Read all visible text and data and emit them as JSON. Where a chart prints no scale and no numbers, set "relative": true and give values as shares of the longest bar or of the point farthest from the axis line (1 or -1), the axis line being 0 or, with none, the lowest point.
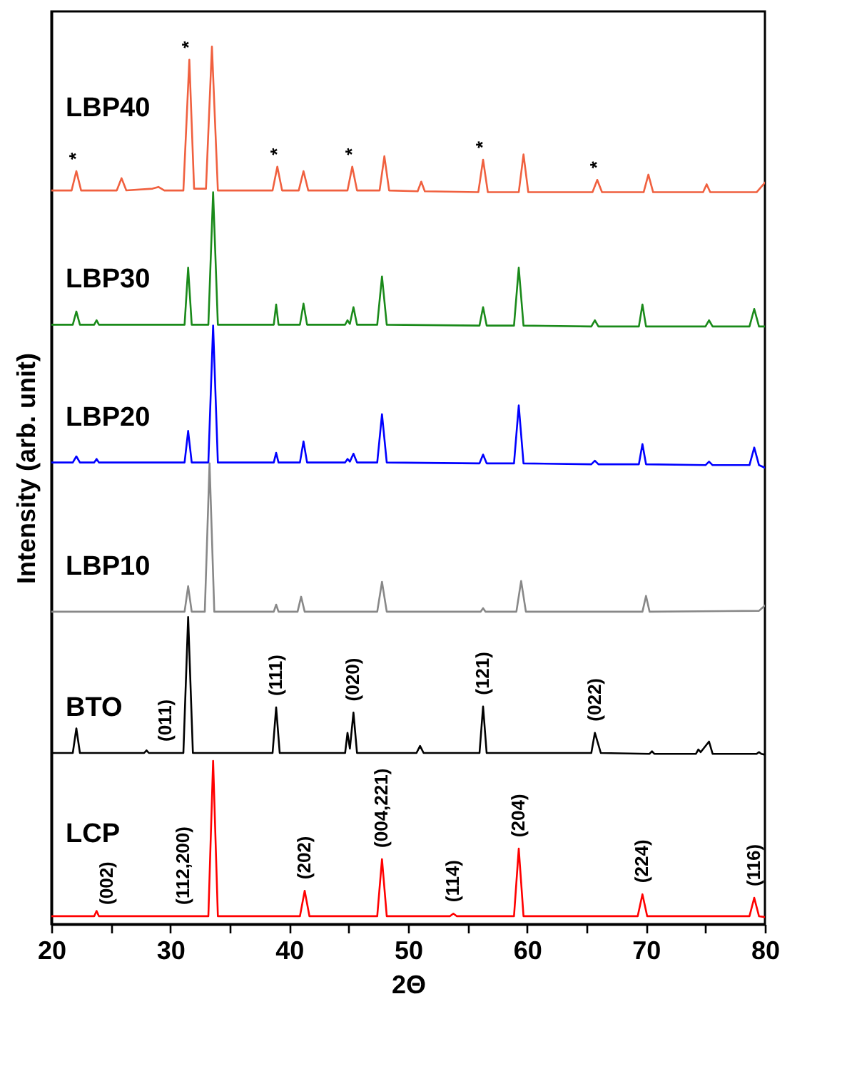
{
  "chart_data": {
    "type": "line",
    "relative": true,
    "tick_labels": "x",
    "xlabel": "2Θ",
    "ylabel": "Intensity (arb. unit)",
    "xlim": [
      20,
      80
    ],
    "xticks": [
      20,
      {
        "value": 25,
        "label": null
      },
      30,
      {
        "value": 35,
        "label": null
      },
      40,
      {
        "value": 45,
        "label": null
      },
      50,
      {
        "value": 55,
        "label": null
      },
      60,
      {
        "value": 65,
        "label": null
      },
      70,
      {
        "value": 75,
        "label": null
      },
      80
    ],
    "grid": false,
    "line_style": "solid",
    "marker": "none",
    "series": [
      {
        "name": "LBP40",
        "color": "#f0603f",
        "x": [
          20,
          21.7,
          22.1,
          22.5,
          25.5,
          25.9,
          26.3,
          28.5,
          29,
          29.5,
          31.1,
          31.6,
          32.0,
          33.0,
          33.5,
          34.0,
          38.6,
          39.0,
          39.4,
          40.8,
          41.2,
          41.6,
          44.9,
          45.3,
          45.7,
          47.6,
          48.0,
          48.4,
          50.8,
          51.1,
          51.4,
          55.9,
          56.3,
          56.7,
          59.3,
          59.7,
          60.1,
          65.5,
          65.9,
          66.3,
          69.8,
          70.2,
          70.6,
          74.8,
          75.1,
          75.4,
          79.3,
          80
        ],
        "values": [
          0.836,
          0.836,
          0.858,
          0.836,
          0.836,
          0.85,
          0.836,
          0.838,
          0.84,
          0.836,
          0.836,
          0.985,
          0.838,
          0.838,
          1.0,
          0.836,
          0.836,
          0.863,
          0.836,
          0.836,
          0.858,
          0.836,
          0.836,
          0.863,
          0.836,
          0.836,
          0.875,
          0.836,
          0.835,
          0.846,
          0.835,
          0.834,
          0.871,
          0.834,
          0.834,
          0.877,
          0.834,
          0.834,
          0.848,
          0.834,
          0.834,
          0.854,
          0.834,
          0.834,
          0.843,
          0.834,
          0.834,
          0.845
        ]
      },
      {
        "name": "LBP30",
        "color": "#1a8a1a",
        "x": [
          20,
          21.8,
          22.1,
          22.4,
          23.6,
          23.8,
          24.0,
          31.2,
          31.5,
          31.8,
          33.2,
          33.6,
          34.0,
          38.7,
          38.9,
          39.1,
          40.9,
          41.2,
          41.5,
          44.7,
          44.9,
          45.1,
          45.4,
          45.7,
          47.4,
          47.8,
          48.2,
          56.0,
          56.3,
          56.6,
          58.9,
          59.3,
          59.7,
          65.4,
          65.7,
          66.0,
          69.4,
          69.7,
          70.0,
          75.0,
          75.3,
          75.6,
          78.7,
          79.1,
          79.5,
          80
        ],
        "values": [
          0.683,
          0.683,
          0.698,
          0.683,
          0.683,
          0.688,
          0.683,
          0.683,
          0.748,
          0.683,
          0.683,
          0.834,
          0.683,
          0.683,
          0.706,
          0.683,
          0.683,
          0.707,
          0.683,
          0.683,
          0.688,
          0.684,
          0.703,
          0.683,
          0.683,
          0.738,
          0.683,
          0.682,
          0.703,
          0.682,
          0.682,
          0.748,
          0.682,
          0.681,
          0.688,
          0.681,
          0.681,
          0.706,
          0.681,
          0.681,
          0.688,
          0.681,
          0.681,
          0.701,
          0.681,
          0.681
        ]
      },
      {
        "name": "LBP20",
        "color": "#0000ff",
        "x": [
          20,
          21.8,
          22.1,
          22.4,
          23.6,
          23.8,
          24.0,
          31.2,
          31.5,
          31.8,
          33.2,
          33.6,
          34.0,
          38.7,
          38.9,
          39.1,
          40.9,
          41.2,
          41.5,
          44.7,
          44.9,
          45.1,
          45.4,
          45.7,
          47.4,
          47.8,
          48.2,
          56.0,
          56.3,
          56.6,
          58.9,
          59.3,
          59.7,
          65.4,
          65.7,
          66.0,
          69.4,
          69.7,
          70.0,
          75.0,
          75.3,
          75.6,
          78.7,
          79.1,
          79.5,
          80
        ],
        "values": [
          0.526,
          0.526,
          0.533,
          0.526,
          0.526,
          0.53,
          0.526,
          0.526,
          0.562,
          0.526,
          0.526,
          0.682,
          0.526,
          0.526,
          0.537,
          0.526,
          0.526,
          0.55,
          0.526,
          0.526,
          0.53,
          0.527,
          0.536,
          0.526,
          0.526,
          0.581,
          0.526,
          0.525,
          0.535,
          0.525,
          0.525,
          0.591,
          0.525,
          0.524,
          0.528,
          0.524,
          0.524,
          0.547,
          0.524,
          0.523,
          0.527,
          0.523,
          0.523,
          0.543,
          0.523,
          0.52
        ]
      },
      {
        "name": "LBP10",
        "color": "#888888",
        "x": [
          20,
          31.2,
          31.5,
          31.8,
          32.9,
          33.3,
          33.7,
          38.7,
          38.9,
          39.1,
          40.7,
          41.0,
          41.3,
          47.4,
          47.8,
          48.2,
          56.1,
          56.3,
          56.5,
          59.1,
          59.5,
          59.9,
          69.7,
          70.0,
          70.3,
          79.5,
          80
        ],
        "values": [
          0.356,
          0.356,
          0.385,
          0.356,
          0.356,
          0.525,
          0.356,
          0.356,
          0.364,
          0.356,
          0.356,
          0.373,
          0.356,
          0.356,
          0.39,
          0.356,
          0.356,
          0.36,
          0.356,
          0.356,
          0.391,
          0.356,
          0.356,
          0.374,
          0.356,
          0.357,
          0.363
        ]
      },
      {
        "name": "BTO",
        "color": "#000000",
        "x": [
          20,
          21.8,
          22.1,
          22.4,
          27.8,
          28.0,
          28.2,
          31.1,
          31.5,
          31.9,
          38.6,
          38.9,
          39.2,
          44.7,
          44.9,
          45.1,
          45.4,
          45.7,
          50.7,
          51.0,
          51.3,
          56.0,
          56.3,
          56.6,
          65.4,
          65.7,
          66.2,
          70.3,
          70.5,
          70.7,
          74.2,
          74.4,
          74.6,
          75.3,
          75.6,
          79.3,
          79.5,
          79.7,
          80
        ],
        "values": [
          0.195,
          0.195,
          0.223,
          0.195,
          0.195,
          0.198,
          0.195,
          0.195,
          0.35,
          0.195,
          0.195,
          0.247,
          0.195,
          0.195,
          0.218,
          0.2,
          0.241,
          0.195,
          0.195,
          0.203,
          0.195,
          0.195,
          0.248,
          0.195,
          0.195,
          0.218,
          0.195,
          0.194,
          0.197,
          0.194,
          0.194,
          0.199,
          0.196,
          0.208,
          0.194,
          0.194,
          0.196,
          0.194,
          0.193
        ]
      },
      {
        "name": "LCP",
        "color": "#ff0000",
        "x": [
          20,
          23.6,
          23.8,
          24.0,
          33.2,
          33.6,
          34.0,
          40.9,
          41.3,
          41.7,
          47.4,
          47.8,
          48.2,
          53.5,
          53.8,
          54.1,
          58.9,
          59.3,
          59.7,
          69.3,
          69.7,
          70.1,
          78.7,
          79.1,
          79.5,
          80
        ],
        "values": [
          0.009,
          0.009,
          0.015,
          0.009,
          0.009,
          0.186,
          0.009,
          0.009,
          0.038,
          0.009,
          0.009,
          0.074,
          0.009,
          0.009,
          0.012,
          0.009,
          0.009,
          0.086,
          0.009,
          0.009,
          0.034,
          0.009,
          0.009,
          0.03,
          0.009,
          0.008
        ]
      }
    ],
    "annotations": [
      {
        "text": "*",
        "x": 22.1,
        "y": 0.858
      },
      {
        "text": "*",
        "x": 31.6,
        "y": 0.985
      },
      {
        "text": "*",
        "x": 39.0,
        "y": 0.863
      },
      {
        "text": "*",
        "x": 45.3,
        "y": 0.863
      },
      {
        "text": "*",
        "x": 56.3,
        "y": 0.871
      },
      {
        "text": "*",
        "x": 65.9,
        "y": 0.848
      },
      {
        "text": "(011)",
        "x": 29.6,
        "y": 0.195
      },
      {
        "text": "(111)",
        "x": 38.9,
        "y": 0.247
      },
      {
        "text": "(020)",
        "x": 45.4,
        "y": 0.241
      },
      {
        "text": "(121)",
        "x": 56.3,
        "y": 0.248
      },
      {
        "text": "(022)",
        "x": 65.7,
        "y": 0.218
      },
      {
        "text": "(002)",
        "x": 24.7,
        "y": 0.009
      },
      {
        "text": "(112,200)",
        "x": 31.1,
        "y": 0.009
      },
      {
        "text": "(202)",
        "x": 41.3,
        "y": 0.038
      },
      {
        "text": "(004,221)",
        "x": 47.8,
        "y": 0.074
      },
      {
        "text": "(114)",
        "x": 53.8,
        "y": 0.012
      },
      {
        "text": "(204)",
        "x": 59.3,
        "y": 0.086
      },
      {
        "text": "(224)",
        "x": 69.7,
        "y": 0.034
      },
      {
        "text": "(116)",
        "x": 79.1,
        "y": 0.03
      }
    ]
  }
}
